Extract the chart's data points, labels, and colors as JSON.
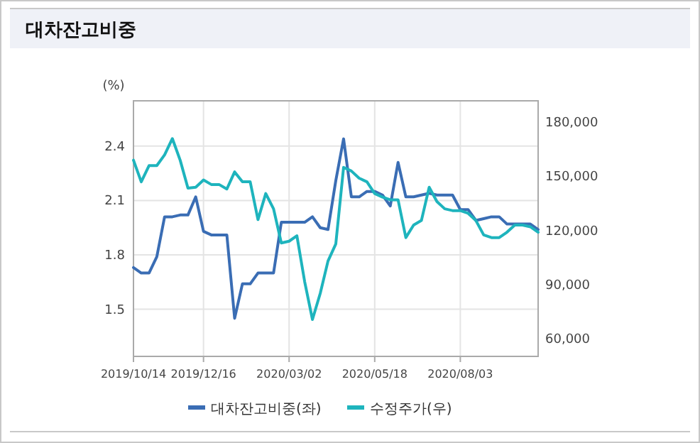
{
  "chart_data": {
    "type": "line",
    "title": "대차잔고비중",
    "ylabel": "(%)",
    "x": [
      "2019-10-14",
      "2019-10-21",
      "2019-10-28",
      "2019-11-04",
      "2019-11-11",
      "2019-11-18",
      "2019-11-25",
      "2019-12-02",
      "2019-12-09",
      "2019-12-16",
      "2019-12-23",
      "2019-12-30",
      "2020-01-06",
      "2020-01-13",
      "2020-01-20",
      "2020-01-27",
      "2020-02-03",
      "2020-02-10",
      "2020-02-17",
      "2020-02-24",
      "2020-03-02",
      "2020-03-09",
      "2020-03-16",
      "2020-03-23",
      "2020-03-30",
      "2020-04-06",
      "2020-04-13",
      "2020-04-20",
      "2020-04-27",
      "2020-05-04",
      "2020-05-11",
      "2020-05-18",
      "2020-05-25",
      "2020-06-01",
      "2020-06-08",
      "2020-06-15",
      "2020-06-22",
      "2020-06-29",
      "2020-07-06",
      "2020-07-13",
      "2020-07-20",
      "2020-07-27",
      "2020-08-03",
      "2020-08-10",
      "2020-08-17",
      "2020-08-24",
      "2020-08-31",
      "2020-09-07",
      "2020-09-14",
      "2020-09-21",
      "2020-09-28",
      "2020-10-05",
      "2020-10-12"
    ],
    "series": [
      {
        "name": "대차잔고비중(좌)",
        "color": "#3a6db4",
        "values": [
          1.73,
          1.7,
          1.7,
          1.79,
          2.01,
          2.01,
          2.02,
          2.02,
          2.12,
          1.93,
          1.91,
          1.91,
          1.91,
          1.45,
          1.64,
          1.64,
          1.7,
          1.7,
          1.7,
          1.98,
          1.98,
          1.98,
          1.98,
          2.01,
          1.95,
          1.94,
          2.21,
          2.44,
          2.12,
          2.12,
          2.15,
          2.15,
          2.13,
          2.07,
          2.31,
          2.12,
          2.12,
          2.13,
          2.14,
          2.13,
          2.13,
          2.13,
          2.05,
          2.05,
          1.99,
          2.0,
          2.01,
          2.01,
          1.97,
          1.97,
          1.97,
          1.97,
          1.94
        ]
      },
      {
        "name": "수정주가(우)",
        "color": "#1eb4bd",
        "axis": "y2",
        "values": [
          159000,
          147000,
          156000,
          156000,
          162000,
          171000,
          159000,
          143500,
          144000,
          148000,
          145500,
          145500,
          143000,
          152500,
          147000,
          147000,
          126000,
          140500,
          132000,
          113000,
          114000,
          117000,
          91500,
          70500,
          85000,
          103000,
          112500,
          155000,
          153000,
          149000,
          147000,
          140500,
          138500,
          137000,
          137000,
          116000,
          123000,
          125500,
          144000,
          136000,
          132000,
          131000,
          131000,
          129500,
          125500,
          117500,
          116000,
          116000,
          119000,
          123000,
          123000,
          122000,
          119000
        ]
      }
    ],
    "xlim": [
      "2019-10-14",
      "2020-10-12"
    ],
    "xticks": [
      {
        "value": "2019-10-14",
        "label": "2019/10/14"
      },
      {
        "value": "2019-12-16",
        "label": "2019/12/16"
      },
      {
        "value": "2020-03-02",
        "label": "2020/03/02"
      },
      {
        "value": "2020-05-18",
        "label": "2020/05/18"
      },
      {
        "value": "2020-08-03",
        "label": "2020/08/03"
      }
    ],
    "ylim": [
      1.24,
      2.65
    ],
    "yticks": [
      1.5,
      1.8,
      2.1,
      2.4
    ],
    "y2lim": [
      50000,
      192000
    ],
    "y2ticks": [
      {
        "value": 60000,
        "label": "60,000"
      },
      {
        "value": 90000,
        "label": "90,000"
      },
      {
        "value": 120000,
        "label": "120,000"
      },
      {
        "value": 150000,
        "label": "150,000"
      },
      {
        "value": 180000,
        "label": "180,000"
      }
    ],
    "grid": true,
    "legend": "bottom"
  }
}
